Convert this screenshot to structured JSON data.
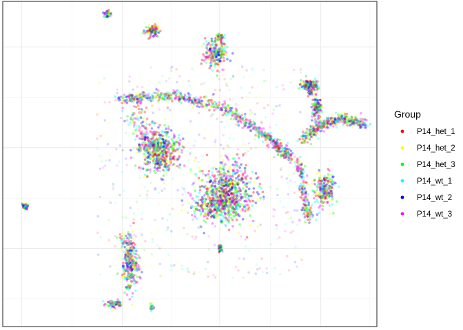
{
  "chart_data": {
    "type": "scatter",
    "title": "",
    "xlabel": "",
    "ylabel": "",
    "grid": true,
    "legend_placement": "right",
    "legend": {
      "title": "Group",
      "entries": [
        {
          "name": "P14_het_1",
          "color": "#FF0000"
        },
        {
          "name": "P14_het_2",
          "color": "#FFFF00"
        },
        {
          "name": "P14_het_3",
          "color": "#00FF00"
        },
        {
          "name": "P14_wt_1",
          "color": "#00FFFF"
        },
        {
          "name": "P14_wt_2",
          "color": "#0000FF"
        },
        {
          "name": "P14_wt_3",
          "color": "#FF00FF"
        }
      ]
    },
    "xlim": [
      0,
      1
    ],
    "ylim": [
      0,
      1
    ],
    "clusters": [
      {
        "cx": 0.28,
        "cy": 0.96,
        "sx": 0.004,
        "sy": 0.006,
        "n": 60
      },
      {
        "cx": 0.4,
        "cy": 0.91,
        "sx": 0.008,
        "sy": 0.008,
        "n": 120
      },
      {
        "cx": 0.57,
        "cy": 0.84,
        "sx": 0.015,
        "sy": 0.02,
        "n": 220
      },
      {
        "cx": 0.58,
        "cy": 0.89,
        "sx": 0.005,
        "sy": 0.005,
        "n": 40
      },
      {
        "cx": 0.82,
        "cy": 0.74,
        "sx": 0.01,
        "sy": 0.01,
        "n": 200
      },
      {
        "cx": 0.84,
        "cy": 0.67,
        "sx": 0.006,
        "sy": 0.02,
        "n": 120
      },
      {
        "cx": 0.42,
        "cy": 0.54,
        "sx": 0.025,
        "sy": 0.03,
        "n": 480
      },
      {
        "cx": 0.6,
        "cy": 0.42,
        "sx": 0.035,
        "sy": 0.045,
        "n": 650
      },
      {
        "cx": 0.57,
        "cy": 0.37,
        "sx": 0.03,
        "sy": 0.02,
        "n": 260
      },
      {
        "cx": 0.86,
        "cy": 0.42,
        "sx": 0.014,
        "sy": 0.025,
        "n": 220
      },
      {
        "cx": 0.06,
        "cy": 0.37,
        "sx": 0.004,
        "sy": 0.004,
        "n": 40
      },
      {
        "cx": 0.58,
        "cy": 0.24,
        "sx": 0.003,
        "sy": 0.006,
        "n": 40
      },
      {
        "cx": 0.34,
        "cy": 0.18,
        "sx": 0.01,
        "sy": 0.04,
        "n": 200
      },
      {
        "cx": 0.3,
        "cy": 0.07,
        "sx": 0.012,
        "sy": 0.006,
        "n": 80
      },
      {
        "cx": 0.4,
        "cy": 0.06,
        "sx": 0.003,
        "sy": 0.004,
        "n": 25
      }
    ],
    "curves": [
      {
        "points": [
          [
            0.31,
            0.7
          ],
          [
            0.45,
            0.71
          ],
          [
            0.6,
            0.67
          ],
          [
            0.72,
            0.57
          ],
          [
            0.77,
            0.52
          ]
        ],
        "spread": 0.008,
        "n": 700
      },
      {
        "points": [
          [
            0.8,
            0.57
          ],
          [
            0.85,
            0.62
          ],
          [
            0.91,
            0.64
          ],
          [
            0.97,
            0.62
          ]
        ],
        "spread": 0.008,
        "n": 380
      },
      {
        "points": [
          [
            0.79,
            0.51
          ],
          [
            0.8,
            0.45
          ],
          [
            0.81,
            0.38
          ],
          [
            0.82,
            0.33
          ]
        ],
        "spread": 0.007,
        "n": 180
      },
      {
        "points": [
          [
            0.35,
            0.67
          ],
          [
            0.38,
            0.59
          ],
          [
            0.4,
            0.52
          ]
        ],
        "spread": 0.02,
        "n": 160
      },
      {
        "points": [
          [
            0.36,
            0.15
          ],
          [
            0.34,
            0.23
          ],
          [
            0.33,
            0.28
          ]
        ],
        "spread": 0.01,
        "n": 120
      }
    ],
    "background_noise": 500
  }
}
